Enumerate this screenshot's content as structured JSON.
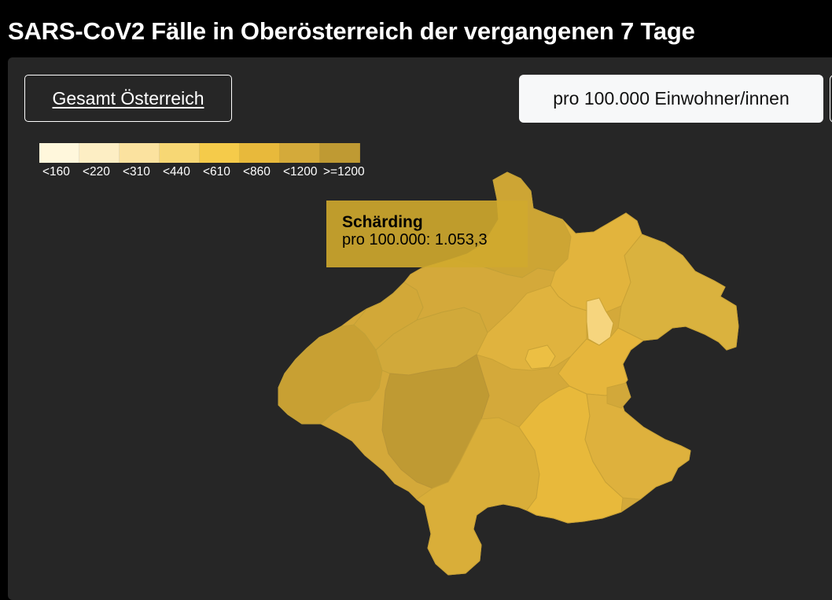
{
  "title": "SARS-CoV2 Fälle in Oberösterreich der vergangenen 7 Tage",
  "toolbar": {
    "austria_button_label": "Gesamt Österreich",
    "metric_button_label": "pro 100.000 Einwohner/innen"
  },
  "legend": {
    "classes": [
      {
        "label": "<160",
        "color": "#fff7dc"
      },
      {
        "label": "<220",
        "color": "#fdeec4"
      },
      {
        "label": "<310",
        "color": "#fbe29f"
      },
      {
        "label": "<440",
        "color": "#f7d774"
      },
      {
        "label": "<610",
        "color": "#f5cb4a"
      },
      {
        "label": "<860",
        "color": "#e8b93b"
      },
      {
        "label": "<1200",
        "color": "#d4aa3a"
      },
      {
        "label": ">=1200",
        "color": "#bf9a33"
      }
    ]
  },
  "tooltip": {
    "district": "Schärding",
    "value_text": "pro 100.000: 1.053,3"
  },
  "colors": {
    "page_background": "#000000",
    "panel_background": "#262626",
    "region_border": "#c9a236",
    "tooltip_background": "#d0aa2d"
  }
}
